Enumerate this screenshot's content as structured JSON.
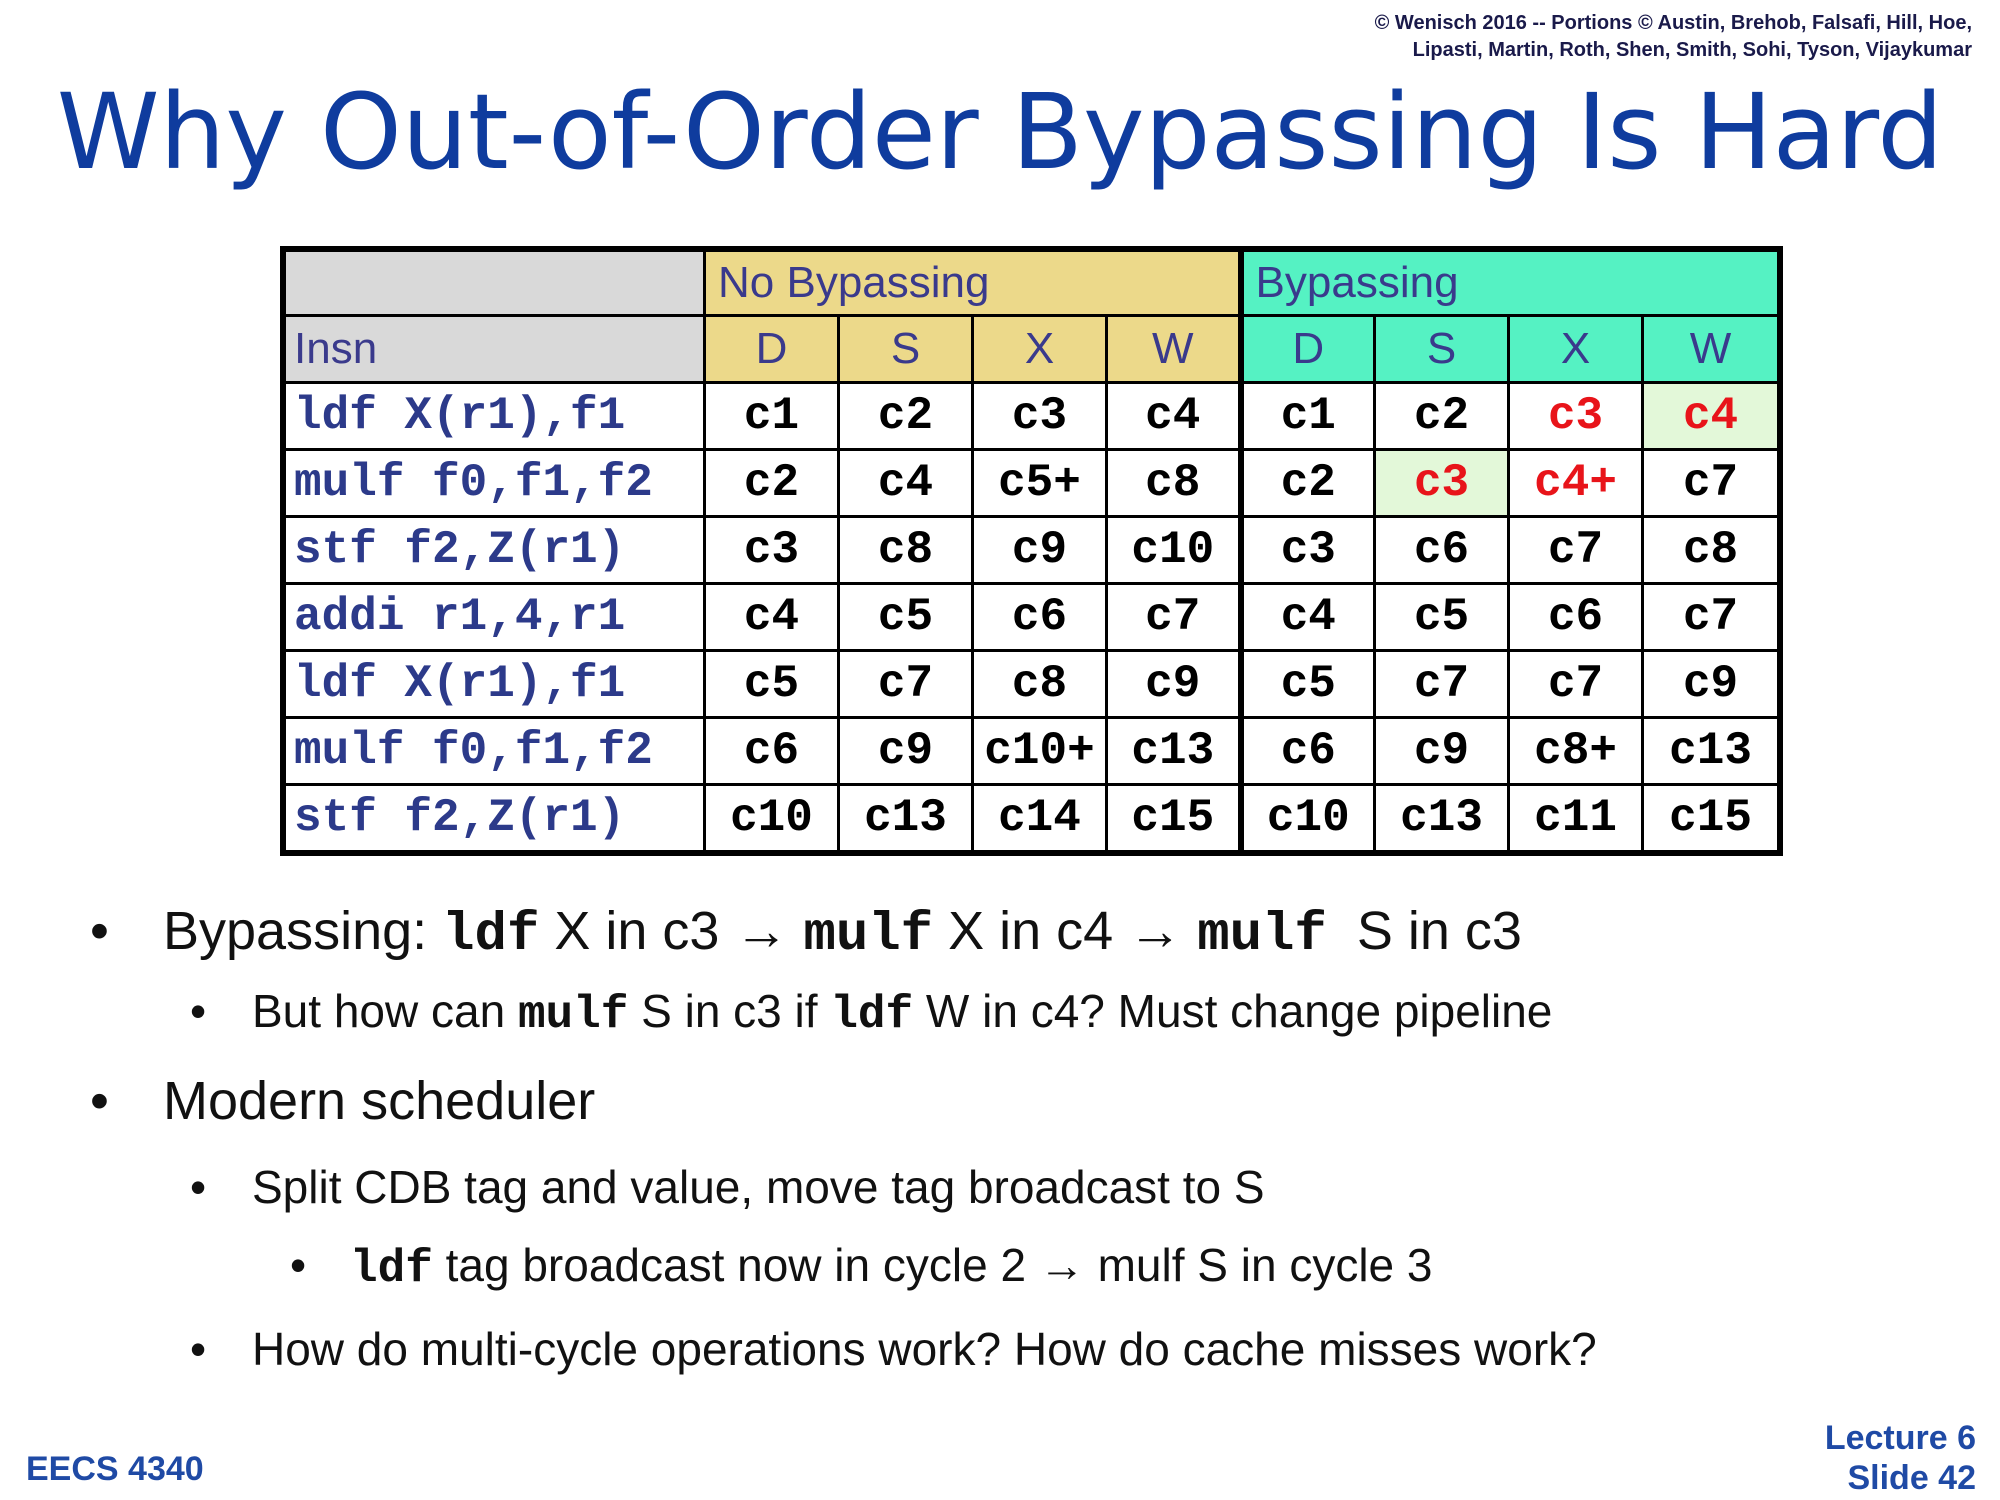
{
  "copyright": {
    "line1": "© Wenisch 2016 -- Portions © Austin, Brehob, Falsafi, Hill, Hoe,",
    "line2": "Lipasti, Martin, Roth, Shen, Smith, Sohi, Tyson, Vijaykumar"
  },
  "title": "Why Out-of-Order Bypassing Is Hard",
  "table": {
    "groups": [
      "No Bypassing",
      "Bypassing"
    ],
    "insn_header": "Insn",
    "stage_headers": [
      "D",
      "S",
      "X",
      "W",
      "D",
      "S",
      "X",
      "W"
    ],
    "rows": [
      {
        "insn": "ldf X(r1),f1",
        "cycles": [
          "c1",
          "c2",
          "c3",
          "c4",
          "c1",
          "c2",
          "c3",
          "c4"
        ]
      },
      {
        "insn": "mulf f0,f1,f2",
        "cycles": [
          "c2",
          "c4",
          "c5+",
          "c8",
          "c2",
          "c3",
          "c4+",
          "c7"
        ]
      },
      {
        "insn": "stf f2,Z(r1)",
        "cycles": [
          "c3",
          "c8",
          "c9",
          "c10",
          "c3",
          "c6",
          "c7",
          "c8"
        ]
      },
      {
        "insn": "addi r1,4,r1",
        "cycles": [
          "c4",
          "c5",
          "c6",
          "c7",
          "c4",
          "c5",
          "c6",
          "c7"
        ]
      },
      {
        "insn": "ldf X(r1),f1",
        "cycles": [
          "c5",
          "c7",
          "c8",
          "c9",
          "c5",
          "c7",
          "c7",
          "c9"
        ]
      },
      {
        "insn": "mulf f0,f1,f2",
        "cycles": [
          "c6",
          "c9",
          "c10+",
          "c13",
          "c6",
          "c9",
          "c8+",
          "c13"
        ]
      },
      {
        "insn": "stf f2,Z(r1)",
        "cycles": [
          "c10",
          "c13",
          "c14",
          "c15",
          "c10",
          "c13",
          "c11",
          "c15"
        ]
      }
    ],
    "colors": {
      "no_bypass_bg": "#ecd98a",
      "bypass_bg": "#55f2c3",
      "highlight_bg": "#e3f8d9",
      "highlight_text": "#e8141a"
    }
  },
  "bullets": {
    "b1": {
      "t1": "Bypassing: ",
      "m1": "ldf",
      "t2": " X in c3 → ",
      "m2": "mulf",
      "t3": " X in c4 → ",
      "m3": "mulf",
      "t4": "  S in c3"
    },
    "b1a": {
      "t1": "But how can ",
      "m1": "mulf",
      "t2": " S in c3 if ",
      "m2": "ldf",
      "t3": " W in c4? Must change pipeline"
    },
    "b2": "Modern scheduler",
    "b2a": "Split CDB tag and value, move tag broadcast to S",
    "b2a1": {
      "m1": "ldf",
      "t1": " tag broadcast now in cycle 2 → mulf S in cycle 3"
    },
    "b2b": "How do multi-cycle operations work? How do cache misses work?"
  },
  "footer": {
    "course": "EECS 4340",
    "lecture": "Lecture 6",
    "slide": "Slide 42"
  }
}
